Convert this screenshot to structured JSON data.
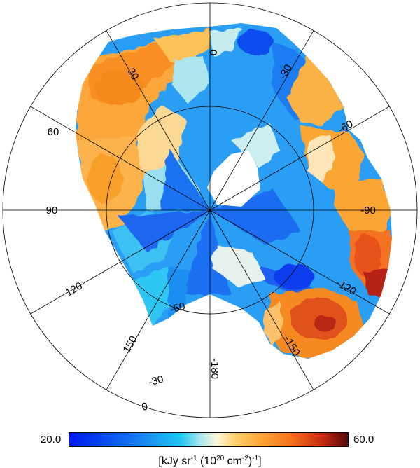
{
  "chart_data": {
    "type": "heatmap",
    "projection": "orthographic polar map (south pole view)",
    "ring_labels_inner": [
      "0",
      "30",
      "60",
      "90",
      "120",
      "150",
      "-180",
      "-150",
      "-120",
      "-90",
      "-60",
      "-30"
    ],
    "ring_labels_outer": [
      "-60",
      "-30",
      "0"
    ],
    "colorbar": {
      "min_label": "20.0",
      "max_label": "60.0",
      "range": [
        20.0,
        60.0
      ],
      "colors": [
        "#0019f0",
        "#0a50f0",
        "#1a8ef2",
        "#20c6f2",
        "#a8e6ee",
        "#fff6d8",
        "#fdcf6a",
        "#fba030",
        "#f5701a",
        "#c52a12",
        "#5a0808"
      ]
    },
    "grid": true
  }
}
